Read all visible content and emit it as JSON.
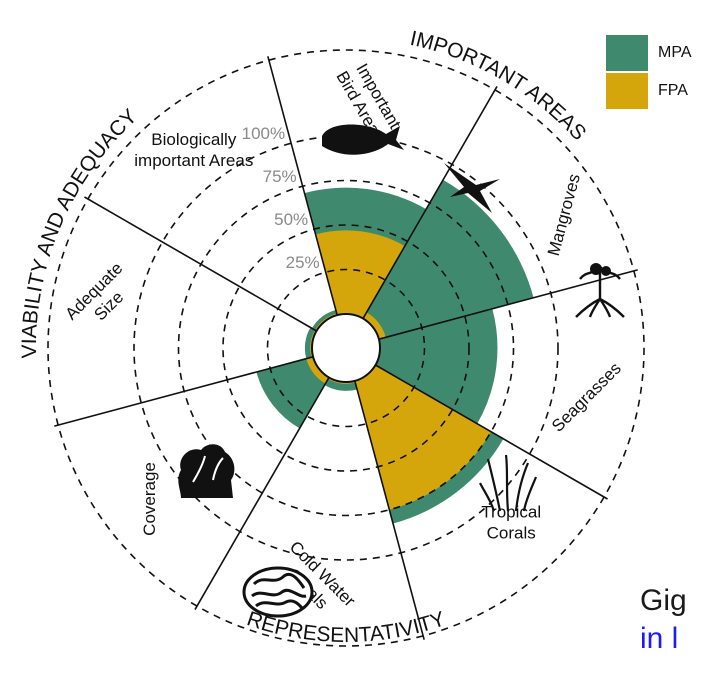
{
  "chart_data": {
    "type": "radial_bar",
    "scale": {
      "max_percent": 100,
      "ticks": [
        "25%",
        "50%",
        "75%",
        "100%"
      ]
    },
    "outer_groups": [
      {
        "label": "IMPORTANT AREAS"
      },
      {
        "label": "VIABILITY AND ADEQUACY"
      },
      {
        "label": "REPRESENTATIVITY"
      }
    ],
    "sectors": [
      {
        "label": "Biologically important Areas",
        "label_lines": [
          "Biologically",
          "important Areas"
        ],
        "icon": "whale-icon",
        "mpa": 3,
        "fpa": 1
      },
      {
        "label": "Important Bird Areas",
        "label_lines": [
          "Important",
          "Bird Areas"
        ],
        "icon": "bird-icon",
        "mpa": 71,
        "fpa": 47
      },
      {
        "label": "Mangroves",
        "label_lines": [
          "Mangroves"
        ],
        "icon": "mangrove-icon",
        "mpa": 90,
        "fpa": 4
      },
      {
        "label": "Seagrasses",
        "label_lines": [
          "Seagrasses"
        ],
        "icon": "seagrass-icon",
        "mpa": 66,
        "fpa": 0
      },
      {
        "label": "Tropical Corals",
        "label_lines": [
          "Tropical",
          "Corals"
        ],
        "icon": "coral-icon",
        "mpa": 83,
        "fpa": 75
      },
      {
        "label": "Cold Water Corals",
        "label_lines": [
          "Cold Water",
          "Corals"
        ],
        "icon": "cold-coral-icon",
        "mpa": 5,
        "fpa": 1
      },
      {
        "label": "Coverage",
        "label_lines": [
          "Coverage"
        ],
        "icon": "",
        "mpa": 33,
        "fpa": 4
      },
      {
        "label": "Adequate Size",
        "label_lines": [
          "Adequate",
          "Size"
        ],
        "icon": "",
        "mpa": 4,
        "fpa": 1
      }
    ],
    "legend": [
      {
        "name": "MPA",
        "color": "#3f8a6e"
      },
      {
        "name": "FPA",
        "color": "#d4a60c"
      }
    ]
  },
  "page_text": {
    "line1": "Gig",
    "line2": "in l"
  }
}
